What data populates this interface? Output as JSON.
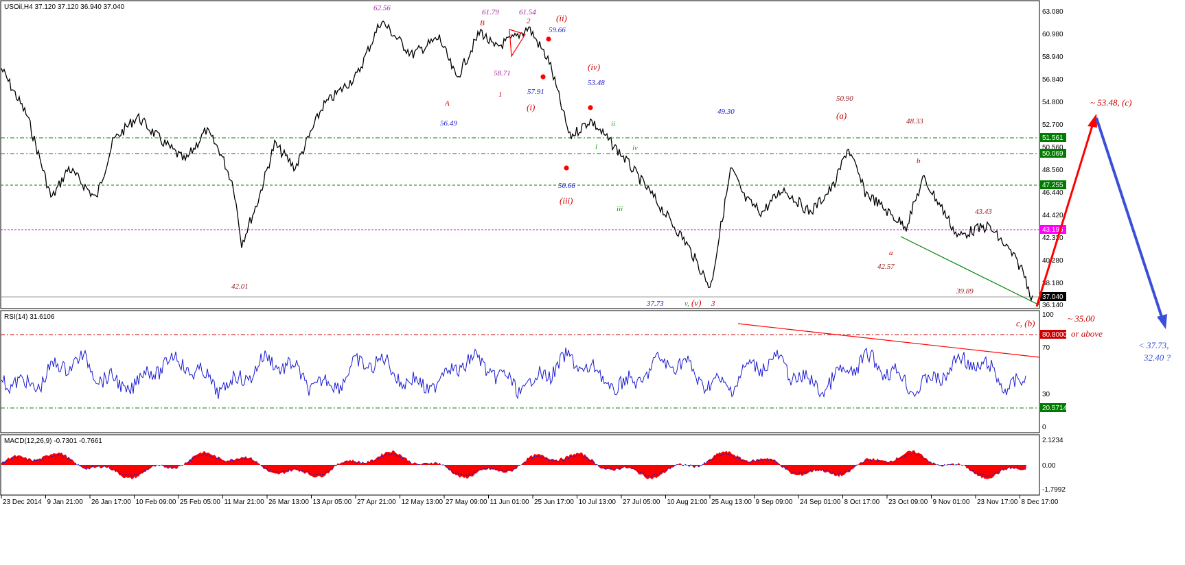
{
  "colors": {
    "price": "#000000",
    "rsi": "#1a1ad0",
    "macd_hist": "#ff0000",
    "macd_signal": "#1a1ad0",
    "level_line": "#008000",
    "level_magenta": "#e000e0",
    "price_tag_bg": "#000000",
    "level_tag_bg": "#007a00",
    "magenta_tag_bg": "#ff00ff",
    "wave_red": "#d00000",
    "wave_blue": "#1a1ad0",
    "wave_purple": "#a020a0",
    "wave_green": "#20a020",
    "wave_darkred": "#a02020"
  },
  "price_panel": {
    "header": "USOil,H4  37.120 37.120 36.940 37.040",
    "y_ticks": [
      "63.080",
      "60.980",
      "58.940",
      "56.840",
      "54.800",
      "52.700",
      "50.560",
      "48.560",
      "46.440",
      "44.420",
      "42.320",
      "40.280",
      "38.180",
      "36.140"
    ],
    "level_tags": [
      "51.561",
      "50.069",
      "47.255",
      "43.196"
    ],
    "last_price_tag": "37.040"
  },
  "rsi_panel": {
    "header": "RSI(14) 31.6106",
    "y_ticks": [
      "100",
      "70",
      "30",
      "0"
    ],
    "level_tags": [
      "80.8000",
      "20.5714"
    ]
  },
  "macd_panel": {
    "header": "MACD(12,26,9) -0.7301 -0.7661",
    "y_ticks": [
      "2.1234",
      "0.00",
      "-1.7992"
    ]
  },
  "x_axis": {
    "labels": [
      "23 Dec 2014",
      "9 Jan 21:00",
      "26 Jan 17:00",
      "10 Feb 09:00",
      "25 Feb 05:00",
      "11 Mar 21:00",
      "26 Mar 13:00",
      "13 Apr 05:00",
      "27 Apr 21:00",
      "12 May 13:00",
      "27 May 09:00",
      "11 Jun 01:00",
      "25 Jun 17:00",
      "10 Jul 13:00",
      "27 Jul 05:00",
      "10 Aug 21:00",
      "25 Aug 13:00",
      "9 Sep 09:00",
      "24 Sep 01:00",
      "8 Oct 17:00",
      "23 Oct 09:00",
      "9 Nov 01:00",
      "23 Nov 17:00",
      "8 Dec 17:00"
    ]
  },
  "wave_labels": [
    {
      "text": "62.56",
      "color": "wave_purple"
    },
    {
      "text": "61.79",
      "color": "wave_purple"
    },
    {
      "text": "B",
      "color": "wave_red"
    },
    {
      "text": "61.54",
      "color": "wave_purple"
    },
    {
      "text": "2",
      "color": "wave_red"
    },
    {
      "text": "(ii)",
      "color": "wave_red"
    },
    {
      "text": "59.66",
      "color": "wave_blue"
    },
    {
      "text": "58.71",
      "color": "wave_purple"
    },
    {
      "text": "(iv)",
      "color": "wave_red"
    },
    {
      "text": "53.48",
      "color": "wave_blue"
    },
    {
      "text": "A",
      "color": "wave_red"
    },
    {
      "text": "1",
      "color": "wave_red"
    },
    {
      "text": "57.91",
      "color": "wave_blue"
    },
    {
      "text": "(i)",
      "color": "wave_red"
    },
    {
      "text": "56.49",
      "color": "wave_blue"
    },
    {
      "text": "ii",
      "color": "wave_green"
    },
    {
      "text": "iv",
      "color": "wave_green"
    },
    {
      "text": "i",
      "color": "wave_green"
    },
    {
      "text": "50.66",
      "color": "wave_blue"
    },
    {
      "text": "(iii)",
      "color": "wave_red"
    },
    {
      "text": "iii",
      "color": "wave_green"
    },
    {
      "text": "49.30",
      "color": "wave_blue"
    },
    {
      "text": "50.90",
      "color": "wave_darkred"
    },
    {
      "text": "(a)",
      "color": "wave_red"
    },
    {
      "text": "48.33",
      "color": "wave_darkred"
    },
    {
      "text": "b",
      "color": "wave_red"
    },
    {
      "text": "43.43",
      "color": "wave_darkred"
    },
    {
      "text": "a",
      "color": "wave_red"
    },
    {
      "text": "42.57",
      "color": "wave_darkred"
    },
    {
      "text": "39.89",
      "color": "wave_darkred"
    },
    {
      "text": "42.01",
      "color": "wave_darkred"
    },
    {
      "text": "37.73",
      "color": "wave_blue"
    },
    {
      "text": "v,",
      "color": "wave_green"
    },
    {
      "text": "(v)",
      "color": "wave_red"
    },
    {
      "text": "3",
      "color": "wave_red"
    },
    {
      "text": "c, (b)",
      "color": "wave_red"
    }
  ],
  "forecast": {
    "upper_target": "~ 53.48,  (c)",
    "lower_target_1": "~ 35.00",
    "lower_target_2": "or above",
    "final_target_1": "< 37.73,",
    "final_target_2": "32.40 ?"
  }
}
